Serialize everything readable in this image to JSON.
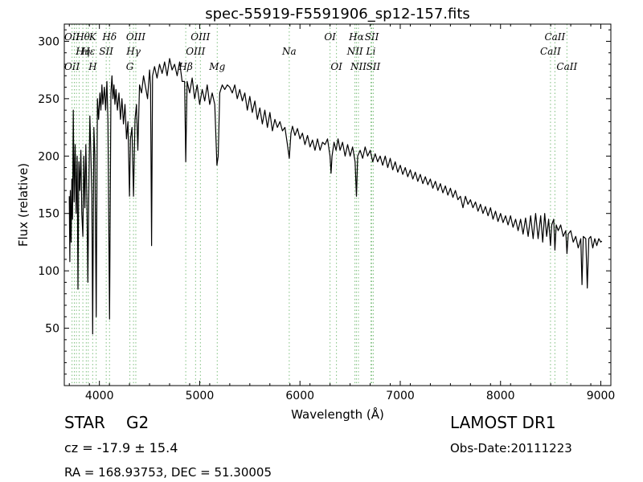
{
  "chart_data": {
    "type": "line",
    "title": "spec-55919-F5591906_sp12-157.fits",
    "xlabel": "Wavelength (Å)",
    "ylabel": "Flux (relative)",
    "xlim": [
      3650,
      9100
    ],
    "ylim": [
      0,
      315
    ],
    "xticks": [
      4000,
      5000,
      6000,
      7000,
      8000,
      9000
    ],
    "yticks": [
      50,
      100,
      150,
      200,
      250,
      300
    ],
    "grid": false,
    "series": [
      {
        "values": [
          [
            3700,
            165
          ],
          [
            3705,
            108
          ],
          [
            3710,
            170
          ],
          [
            3718,
            125
          ],
          [
            3725,
            180
          ],
          [
            3732,
            145
          ],
          [
            3740,
            240
          ],
          [
            3748,
            160
          ],
          [
            3758,
            210
          ],
          [
            3768,
            150
          ],
          [
            3778,
            200
          ],
          [
            3786,
            84
          ],
          [
            3795,
            195
          ],
          [
            3805,
            170
          ],
          [
            3815,
            205
          ],
          [
            3825,
            150
          ],
          [
            3835,
            130
          ],
          [
            3845,
            200
          ],
          [
            3855,
            155
          ],
          [
            3865,
            210
          ],
          [
            3875,
            165
          ],
          [
            3885,
            90
          ],
          [
            3895,
            175
          ],
          [
            3905,
            235
          ],
          [
            3915,
            200
          ],
          [
            3925,
            165
          ],
          [
            3933,
            45
          ],
          [
            3945,
            225
          ],
          [
            3955,
            200
          ],
          [
            3968,
            60
          ],
          [
            3980,
            250
          ],
          [
            3992,
            232
          ],
          [
            4005,
            255
          ],
          [
            4015,
            240
          ],
          [
            4025,
            262
          ],
          [
            4035,
            245
          ],
          [
            4050,
            260
          ],
          [
            4062,
            240
          ],
          [
            4075,
            265
          ],
          [
            4085,
            230
          ],
          [
            4101,
            58
          ],
          [
            4115,
            255
          ],
          [
            4125,
            270
          ],
          [
            4135,
            250
          ],
          [
            4145,
            262
          ],
          [
            4155,
            245
          ],
          [
            4165,
            258
          ],
          [
            4180,
            240
          ],
          [
            4195,
            255
          ],
          [
            4210,
            232
          ],
          [
            4225,
            250
          ],
          [
            4240,
            228
          ],
          [
            4255,
            245
          ],
          [
            4270,
            215
          ],
          [
            4285,
            230
          ],
          [
            4300,
            165
          ],
          [
            4310,
            215
          ],
          [
            4325,
            225
          ],
          [
            4340,
            165
          ],
          [
            4355,
            232
          ],
          [
            4370,
            245
          ],
          [
            4383,
            205
          ],
          [
            4400,
            262
          ],
          [
            4420,
            255
          ],
          [
            4440,
            270
          ],
          [
            4460,
            260
          ],
          [
            4480,
            250
          ],
          [
            4500,
            275
          ],
          [
            4510,
            262
          ],
          [
            4520,
            122
          ],
          [
            4530,
            270
          ],
          [
            4550,
            278
          ],
          [
            4575,
            268
          ],
          [
            4600,
            280
          ],
          [
            4625,
            272
          ],
          [
            4650,
            282
          ],
          [
            4675,
            270
          ],
          [
            4700,
            285
          ],
          [
            4725,
            275
          ],
          [
            4750,
            280
          ],
          [
            4775,
            270
          ],
          [
            4800,
            282
          ],
          [
            4825,
            265
          ],
          [
            4850,
            265
          ],
          [
            4861,
            195
          ],
          [
            4875,
            265
          ],
          [
            4900,
            255
          ],
          [
            4925,
            268
          ],
          [
            4950,
            250
          ],
          [
            4975,
            262
          ],
          [
            5000,
            245
          ],
          [
            5025,
            258
          ],
          [
            5050,
            248
          ],
          [
            5075,
            262
          ],
          [
            5100,
            245
          ],
          [
            5125,
            255
          ],
          [
            5150,
            245
          ],
          [
            5172,
            192
          ],
          [
            5185,
            200
          ],
          [
            5200,
            255
          ],
          [
            5225,
            262
          ],
          [
            5250,
            258
          ],
          [
            5275,
            262
          ],
          [
            5300,
            260
          ],
          [
            5325,
            255
          ],
          [
            5350,
            262
          ],
          [
            5375,
            250
          ],
          [
            5400,
            258
          ],
          [
            5425,
            248
          ],
          [
            5450,
            255
          ],
          [
            5475,
            240
          ],
          [
            5500,
            252
          ],
          [
            5525,
            238
          ],
          [
            5550,
            248
          ],
          [
            5575,
            232
          ],
          [
            5600,
            242
          ],
          [
            5625,
            228
          ],
          [
            5650,
            240
          ],
          [
            5675,
            225
          ],
          [
            5700,
            238
          ],
          [
            5725,
            222
          ],
          [
            5750,
            232
          ],
          [
            5775,
            225
          ],
          [
            5800,
            230
          ],
          [
            5825,
            222
          ],
          [
            5850,
            225
          ],
          [
            5875,
            210
          ],
          [
            5893,
            198
          ],
          [
            5910,
            220
          ],
          [
            5925,
            226
          ],
          [
            5950,
            218
          ],
          [
            5975,
            224
          ],
          [
            6000,
            215
          ],
          [
            6025,
            220
          ],
          [
            6050,
            210
          ],
          [
            6075,
            218
          ],
          [
            6100,
            208
          ],
          [
            6125,
            214
          ],
          [
            6150,
            205
          ],
          [
            6175,
            215
          ],
          [
            6200,
            205
          ],
          [
            6225,
            212
          ],
          [
            6250,
            210
          ],
          [
            6275,
            215
          ],
          [
            6300,
            200
          ],
          [
            6310,
            185
          ],
          [
            6320,
            200
          ],
          [
            6340,
            212
          ],
          [
            6360,
            205
          ],
          [
            6380,
            215
          ],
          [
            6400,
            205
          ],
          [
            6425,
            212
          ],
          [
            6450,
            200
          ],
          [
            6475,
            210
          ],
          [
            6500,
            200
          ],
          [
            6525,
            208
          ],
          [
            6550,
            195
          ],
          [
            6563,
            165
          ],
          [
            6575,
            200
          ],
          [
            6600,
            205
          ],
          [
            6625,
            198
          ],
          [
            6650,
            208
          ],
          [
            6675,
            200
          ],
          [
            6700,
            205
          ],
          [
            6725,
            195
          ],
          [
            6750,
            202
          ],
          [
            6775,
            195
          ],
          [
            6800,
            200
          ],
          [
            6825,
            192
          ],
          [
            6850,
            200
          ],
          [
            6875,
            190
          ],
          [
            6900,
            198
          ],
          [
            6925,
            188
          ],
          [
            6950,
            195
          ],
          [
            6975,
            186
          ],
          [
            7000,
            192
          ],
          [
            7025,
            184
          ],
          [
            7050,
            190
          ],
          [
            7075,
            182
          ],
          [
            7100,
            188
          ],
          [
            7125,
            180
          ],
          [
            7150,
            186
          ],
          [
            7175,
            178
          ],
          [
            7200,
            184
          ],
          [
            7225,
            176
          ],
          [
            7250,
            182
          ],
          [
            7275,
            175
          ],
          [
            7300,
            180
          ],
          [
            7325,
            172
          ],
          [
            7350,
            178
          ],
          [
            7375,
            170
          ],
          [
            7400,
            176
          ],
          [
            7425,
            168
          ],
          [
            7450,
            174
          ],
          [
            7475,
            166
          ],
          [
            7500,
            172
          ],
          [
            7525,
            164
          ],
          [
            7550,
            170
          ],
          [
            7575,
            162
          ],
          [
            7600,
            165
          ],
          [
            7625,
            155
          ],
          [
            7650,
            165
          ],
          [
            7675,
            158
          ],
          [
            7700,
            162
          ],
          [
            7725,
            155
          ],
          [
            7750,
            160
          ],
          [
            7775,
            152
          ],
          [
            7800,
            158
          ],
          [
            7825,
            150
          ],
          [
            7850,
            156
          ],
          [
            7875,
            148
          ],
          [
            7900,
            155
          ],
          [
            7925,
            145
          ],
          [
            7950,
            152
          ],
          [
            7975,
            143
          ],
          [
            8000,
            150
          ],
          [
            8025,
            142
          ],
          [
            8050,
            148
          ],
          [
            8075,
            140
          ],
          [
            8100,
            148
          ],
          [
            8125,
            138
          ],
          [
            8150,
            145
          ],
          [
            8175,
            135
          ],
          [
            8200,
            145
          ],
          [
            8225,
            132
          ],
          [
            8250,
            146
          ],
          [
            8275,
            130
          ],
          [
            8300,
            148
          ],
          [
            8325,
            128
          ],
          [
            8350,
            150
          ],
          [
            8375,
            128
          ],
          [
            8400,
            148
          ],
          [
            8420,
            125
          ],
          [
            8440,
            150
          ],
          [
            8460,
            130
          ],
          [
            8480,
            145
          ],
          [
            8498,
            122
          ],
          [
            8510,
            140
          ],
          [
            8530,
            145
          ],
          [
            8542,
            118
          ],
          [
            8555,
            140
          ],
          [
            8575,
            135
          ],
          [
            8600,
            140
          ],
          [
            8625,
            130
          ],
          [
            8650,
            135
          ],
          [
            8662,
            115
          ],
          [
            8675,
            132
          ],
          [
            8700,
            135
          ],
          [
            8725,
            125
          ],
          [
            8750,
            130
          ],
          [
            8775,
            120
          ],
          [
            8800,
            128
          ],
          [
            8812,
            88
          ],
          [
            8825,
            130
          ],
          [
            8850,
            128
          ],
          [
            8865,
            85
          ],
          [
            8880,
            128
          ],
          [
            8900,
            130
          ],
          [
            8920,
            120
          ],
          [
            8940,
            128
          ],
          [
            8960,
            122
          ],
          [
            8980,
            128
          ],
          [
            9000,
            125
          ],
          [
            9010,
            126
          ]
        ]
      }
    ],
    "lines": [
      {
        "x": 3727,
        "top": "OII",
        "mid": "",
        "low": "OII"
      },
      {
        "x": 3750,
        "top": "",
        "mid": "",
        "low": ""
      },
      {
        "x": 3771,
        "top": "",
        "mid": "",
        "low": ""
      },
      {
        "x": 3798,
        "top": "",
        "mid": "",
        "low": ""
      },
      {
        "x": 3835,
        "top": "Hθ",
        "mid": "Hη",
        "low": ""
      },
      {
        "x": 3869,
        "top": "",
        "mid": "",
        "low": ""
      },
      {
        "x": 3889,
        "top": "",
        "mid": "Hε",
        "low": ""
      },
      {
        "x": 3933,
        "top": "K",
        "mid": "",
        "low": "H"
      },
      {
        "x": 3968,
        "top": "",
        "mid": "",
        "low": ""
      },
      {
        "x": 4068,
        "top": "",
        "mid": "SII",
        "low": ""
      },
      {
        "x": 4101,
        "top": "Hδ",
        "mid": "",
        "low": ""
      },
      {
        "x": 4304,
        "top": "",
        "mid": "",
        "low": "G"
      },
      {
        "x": 4340,
        "top": "",
        "mid": "Hγ",
        "low": ""
      },
      {
        "x": 4363,
        "top": "OIII",
        "mid": "",
        "low": ""
      },
      {
        "x": 4861,
        "top": "",
        "mid": "",
        "low": "Hβ"
      },
      {
        "x": 4959,
        "top": "",
        "mid": "OIII",
        "low": ""
      },
      {
        "x": 5007,
        "top": "OIII",
        "mid": "",
        "low": ""
      },
      {
        "x": 5175,
        "top": "",
        "mid": "",
        "low": "Mg"
      },
      {
        "x": 5893,
        "top": "",
        "mid": "Na",
        "low": ""
      },
      {
        "x": 6300,
        "top": "OI",
        "mid": "",
        "low": ""
      },
      {
        "x": 6364,
        "top": "",
        "mid": "",
        "low": "OI"
      },
      {
        "x": 6548,
        "top": "",
        "mid": "NII",
        "low": ""
      },
      {
        "x": 6563,
        "top": "Hα",
        "mid": "",
        "low": ""
      },
      {
        "x": 6583,
        "top": "",
        "mid": "",
        "low": "NII"
      },
      {
        "x": 6707,
        "top": "",
        "mid": "Li",
        "low": ""
      },
      {
        "x": 6716,
        "top": "SII",
        "mid": "",
        "low": ""
      },
      {
        "x": 6731,
        "top": "",
        "mid": "",
        "low": "SII"
      },
      {
        "x": 8498,
        "top": "",
        "mid": "CaII",
        "low": ""
      },
      {
        "x": 8542,
        "top": "CaII",
        "mid": "",
        "low": ""
      },
      {
        "x": 8662,
        "top": "",
        "mid": "",
        "low": "CaII"
      }
    ]
  },
  "info": {
    "class": "STAR",
    "subclass": "G2",
    "cz": "cz = -17.9 ± 15.4",
    "coords": "RA = 168.93753, DEC = 51.30005",
    "survey": "LAMOST DR1",
    "obs_date": "Obs-Date:20111223"
  },
  "colors": {
    "line": "#000000",
    "marker": "#7fbf7f",
    "axis": "#000000"
  }
}
